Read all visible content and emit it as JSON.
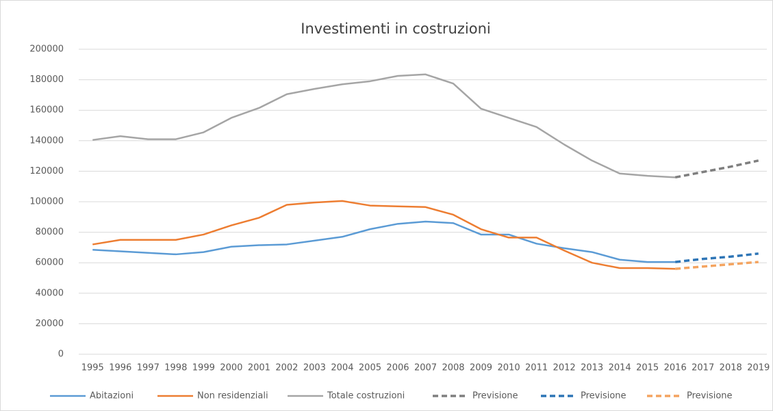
{
  "chart_data": {
    "type": "line",
    "title": "Investimenti in costruzioni",
    "categories": [
      "1995",
      "1996",
      "1997",
      "1998",
      "1999",
      "2000",
      "2001",
      "2002",
      "2003",
      "2004",
      "2005",
      "2006",
      "2007",
      "2008",
      "2009",
      "2010",
      "2011",
      "2012",
      "2013",
      "2014",
      "2015",
      "2016",
      "2017",
      "2018",
      "2019"
    ],
    "series": [
      {
        "name": "Abitazioni",
        "color": "#5b9bd5",
        "dashed": false,
        "values": [
          68500,
          67500,
          66500,
          65500,
          67000,
          70500,
          71500,
          72000,
          74500,
          77000,
          82000,
          85500,
          87000,
          86000,
          78500,
          78500,
          72500,
          69500,
          67000,
          62000,
          60500,
          60500,
          null,
          null,
          null
        ]
      },
      {
        "name": "Non residenziali",
        "color": "#ed7d31",
        "dashed": false,
        "values": [
          72000,
          75000,
          75000,
          75000,
          78500,
          84500,
          89500,
          98000,
          99500,
          100500,
          97500,
          97000,
          96500,
          91500,
          82000,
          76500,
          76500,
          68000,
          60000,
          56500,
          56500,
          56000,
          null,
          null,
          null
        ]
      },
      {
        "name": "Totale costruzioni",
        "color": "#a5a5a5",
        "dashed": false,
        "values": [
          140500,
          143000,
          141000,
          141000,
          145500,
          155000,
          161500,
          170500,
          174000,
          177000,
          179000,
          182500,
          183500,
          177500,
          161000,
          155000,
          149000,
          137500,
          127000,
          118500,
          117000,
          116000,
          null,
          null,
          null
        ]
      },
      {
        "name": "Previsione",
        "color": "#7f7f7f",
        "dashed": true,
        "values": [
          null,
          null,
          null,
          null,
          null,
          null,
          null,
          null,
          null,
          null,
          null,
          null,
          null,
          null,
          null,
          null,
          null,
          null,
          null,
          null,
          null,
          116000,
          119500,
          123000,
          127000
        ]
      },
      {
        "name": "Previsione",
        "color": "#2e75b6",
        "dashed": true,
        "values": [
          null,
          null,
          null,
          null,
          null,
          null,
          null,
          null,
          null,
          null,
          null,
          null,
          null,
          null,
          null,
          null,
          null,
          null,
          null,
          null,
          null,
          60500,
          62500,
          64000,
          66000
        ]
      },
      {
        "name": "Previsione",
        "color": "#f4a460",
        "dashed": true,
        "values": [
          null,
          null,
          null,
          null,
          null,
          null,
          null,
          null,
          null,
          null,
          null,
          null,
          null,
          null,
          null,
          null,
          null,
          null,
          null,
          null,
          null,
          56000,
          57500,
          59000,
          60500
        ]
      }
    ],
    "ylim": [
      0,
      200000
    ],
    "yticks": [
      0,
      20000,
      40000,
      60000,
      80000,
      100000,
      120000,
      140000,
      160000,
      180000,
      200000
    ],
    "grid": true,
    "legend": "bottom"
  }
}
